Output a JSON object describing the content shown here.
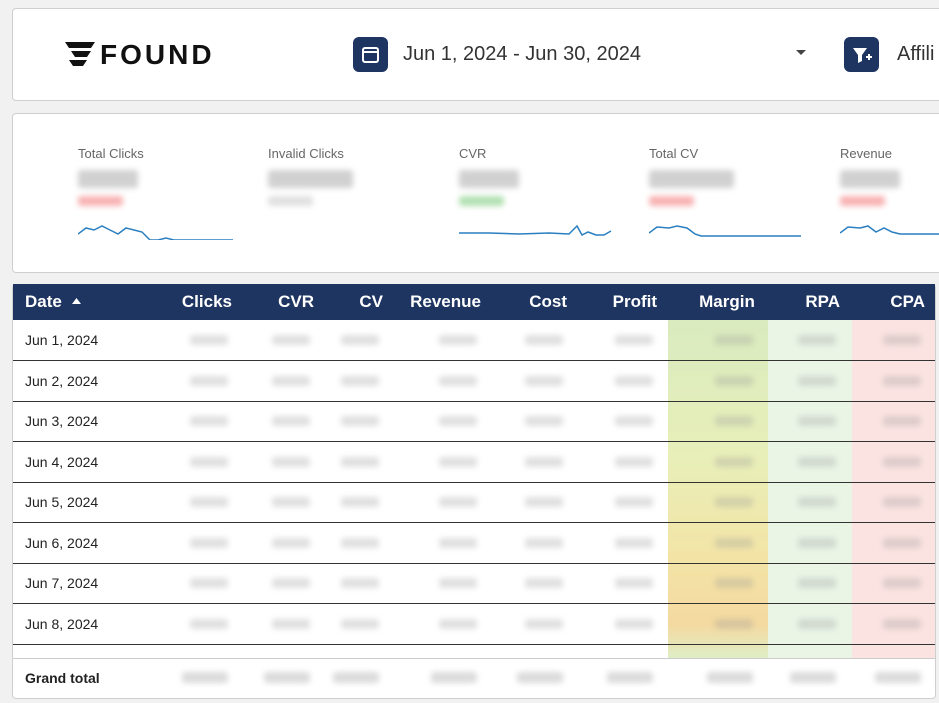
{
  "header": {
    "logo": "FOUND",
    "date_range": "Jun 1, 2024 - Jun 30, 2024",
    "filter": "Affili"
  },
  "kpis": [
    "Total Clicks",
    "Invalid Clicks",
    "CVR",
    "Total CV",
    "Revenue"
  ],
  "table": {
    "columns": [
      "Date",
      "Clicks",
      "CVR",
      "CV",
      "Revenue",
      "Cost",
      "Profit",
      "Margin",
      "RPA",
      "CPA"
    ],
    "rows": [
      "Jun 1, 2024",
      "Jun 2, 2024",
      "Jun 3, 2024",
      "Jun 4, 2024",
      "Jun 5, 2024",
      "Jun 6, 2024",
      "Jun 7, 2024",
      "Jun 8, 2024"
    ],
    "total": "Grand total"
  }
}
